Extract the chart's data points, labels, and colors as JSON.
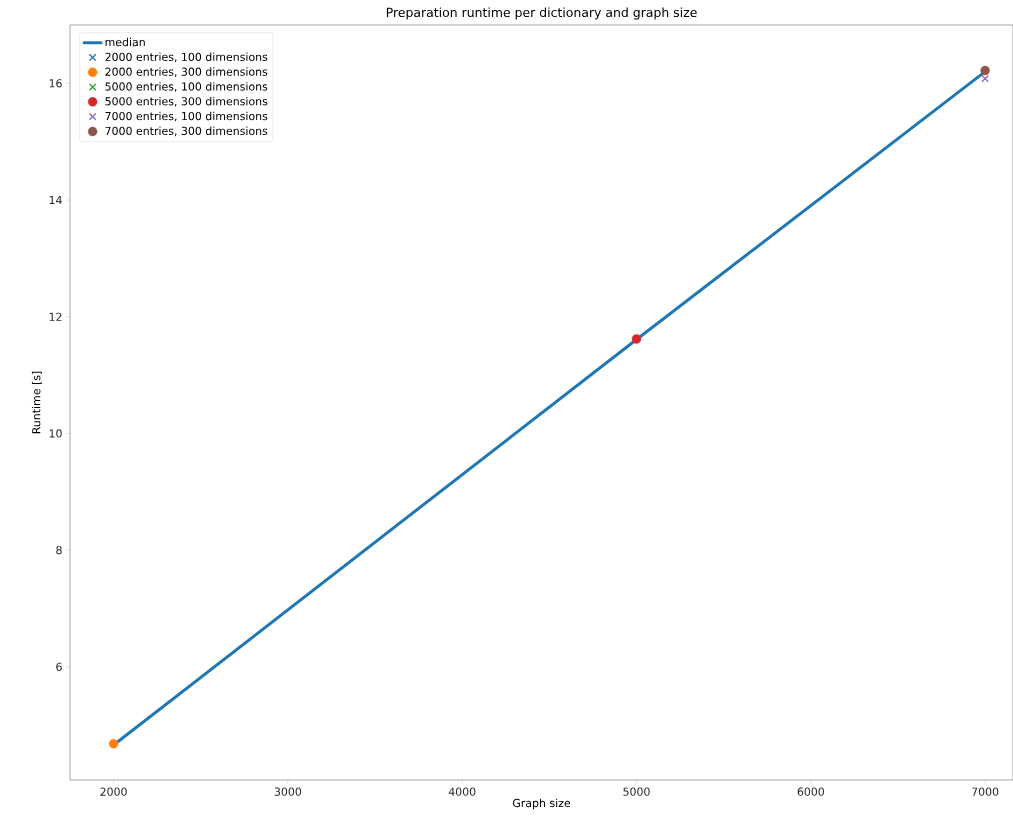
{
  "chart_data": {
    "type": "scatter",
    "title": "Preparation runtime per dictionary and graph size",
    "xlabel": "Graph size",
    "ylabel": "Runtime [s]",
    "xlim": [
      1750,
      7160
    ],
    "ylim": [
      4.06,
      17.0
    ],
    "xticks": [
      2000,
      3000,
      4000,
      5000,
      6000,
      7000
    ],
    "yticks": [
      6,
      8,
      10,
      12,
      14,
      16
    ],
    "legend": "top left",
    "grid": false,
    "series": [
      {
        "name": "median",
        "type": "line",
        "color": "#1f77b4",
        "marker": "none",
        "x": [
          2000,
          5000,
          7000
        ],
        "values": [
          4.66,
          11.61,
          16.2
        ]
      },
      {
        "name": "2000 entries, 100 dimensions",
        "color": "#1f77b4",
        "marker": "cross",
        "x": [
          null
        ],
        "values": [
          null
        ]
      },
      {
        "name": "2000 entries, 300 dimensions",
        "color": "#ff7f0e",
        "marker": "circle",
        "x": [
          2000
        ],
        "values": [
          4.68
        ]
      },
      {
        "name": "5000 entries, 100 dimensions",
        "color": "#2ca02c",
        "marker": "cross",
        "x": [
          null
        ],
        "values": [
          null
        ]
      },
      {
        "name": "5000 entries, 300 dimensions",
        "color": "#d62728",
        "marker": "circle",
        "x": [
          5000
        ],
        "values": [
          11.62
        ]
      },
      {
        "name": "7000 entries, 100 dimensions",
        "color": "#9467bd",
        "marker": "cross",
        "x": [
          7000
        ],
        "values": [
          16.08
        ]
      },
      {
        "name": "7000 entries, 300 dimensions",
        "color": "#8c564b",
        "marker": "circle",
        "x": [
          7000
        ],
        "values": [
          16.22
        ]
      }
    ]
  }
}
